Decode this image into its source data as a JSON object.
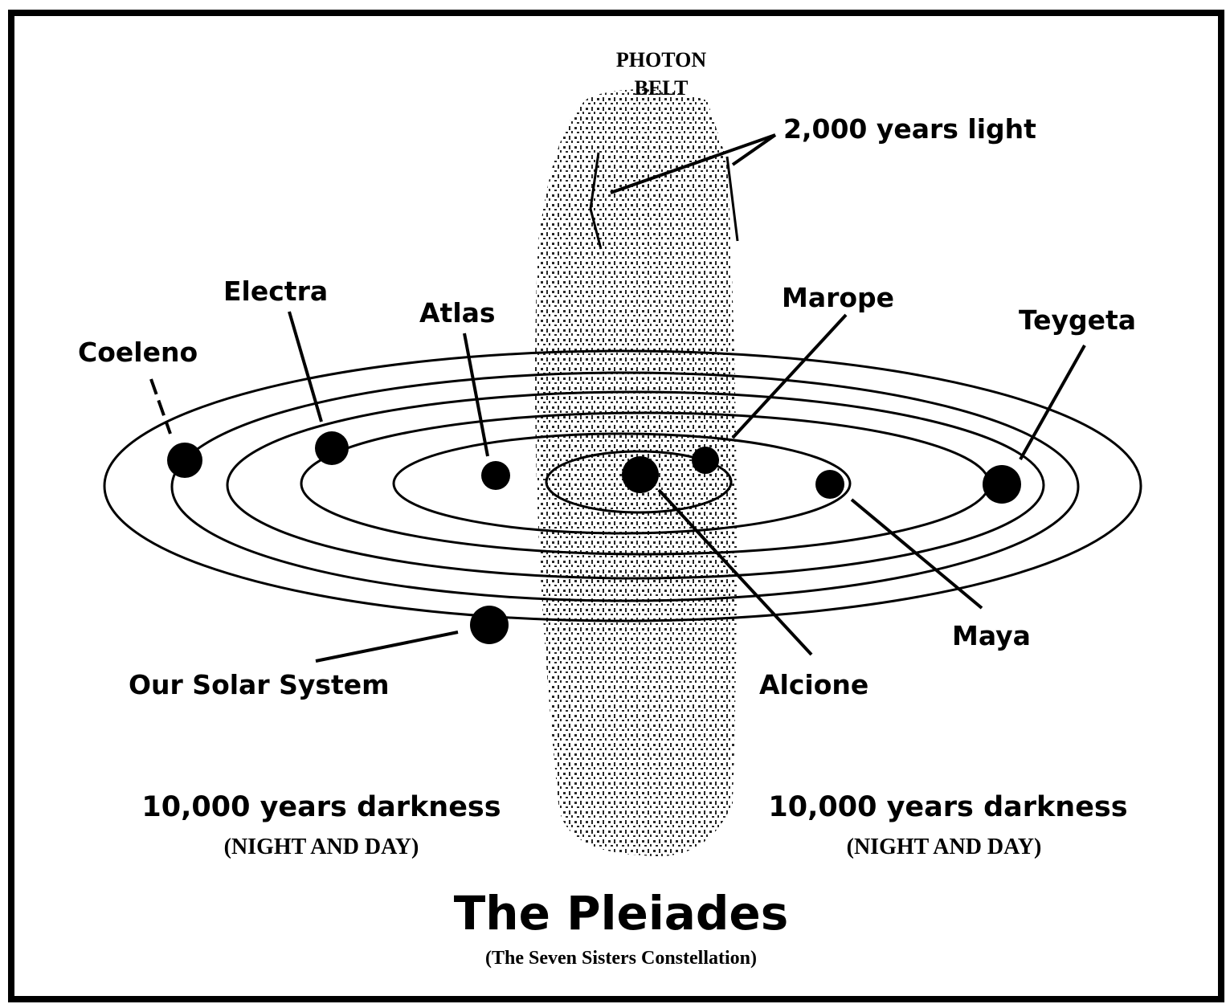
{
  "photon_belt": {
    "label_lines": [
      "PHOTON",
      "BELT"
    ],
    "light_label": "2,000 years light"
  },
  "stars": {
    "coeleno": "Coeleno",
    "electra": "Electra",
    "atlas": "Atlas",
    "marope": "Marope",
    "teygeta": "Teygeta",
    "maya": "Maya",
    "alcione": "Alcione",
    "solar_system": "Our Solar System"
  },
  "darkness": {
    "left": {
      "label": "10,000 years darkness",
      "note": "(NIGHT AND DAY)"
    },
    "right": {
      "label": "10,000 years darkness",
      "note": "(NIGHT AND DAY)"
    }
  },
  "footer": {
    "title": "The Pleiades",
    "subtitle": "(The Seven Sisters Constellation)"
  }
}
